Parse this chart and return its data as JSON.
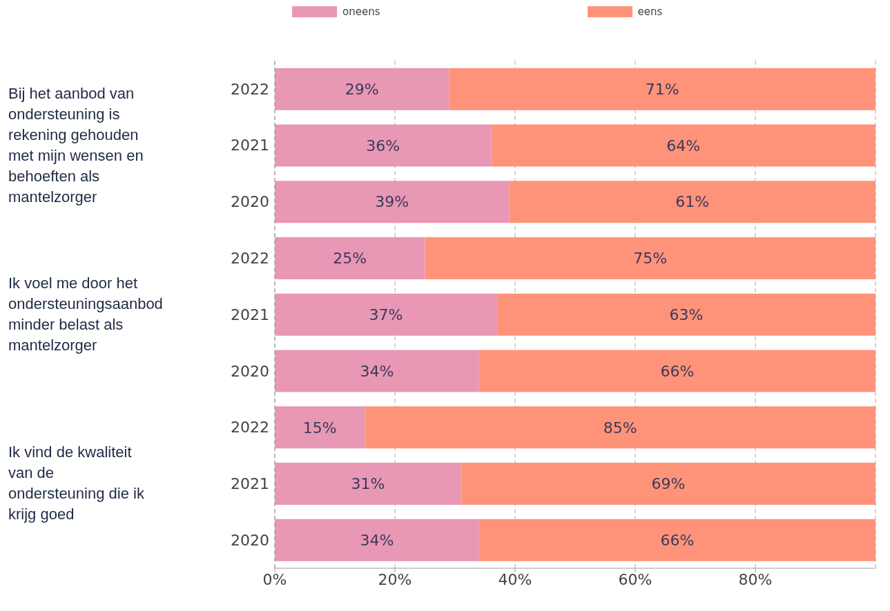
{
  "chart_data": {
    "type": "bar",
    "orientation": "horizontal",
    "stacked": true,
    "categories": [
      "2022",
      "2021",
      "2020",
      "2022",
      "2021",
      "2020",
      "2022",
      "2021",
      "2020"
    ],
    "series": [
      {
        "name": "oneens",
        "color": "#e897b4",
        "values": [
          29,
          36,
          39,
          25,
          37,
          34,
          15,
          31,
          34
        ],
        "value_labels": [
          "29%",
          "36%",
          "39%",
          "25%",
          "37%",
          "34%",
          "15%",
          "31%",
          "34%"
        ]
      },
      {
        "name": "eens",
        "color": "#ff937a",
        "values": [
          71,
          64,
          61,
          75,
          63,
          66,
          85,
          69,
          66
        ],
        "value_labels": [
          "71%",
          "64%",
          "61%",
          "75%",
          "63%",
          "66%",
          "85%",
          "69%",
          "66%"
        ]
      }
    ],
    "xlim": [
      0,
      100
    ],
    "xticks": [
      {
        "value": 0,
        "label": "0%"
      },
      {
        "value": 20,
        "label": "20%"
      },
      {
        "value": 40,
        "label": "40%"
      },
      {
        "value": 60,
        "label": "60%"
      },
      {
        "value": 80,
        "label": "80%"
      }
    ],
    "grid": "x",
    "legend": "top",
    "annotations": [
      "Bij het aanbod van ondersteuning is rekening gehouden met mijn wensen en behoeften als mantelzorger",
      "Ik voel me door het ondersteuningsaanbod minder belast als mantelzorger",
      "Ik vind de kwaliteit van de ondersteuning die ik krijg goed"
    ]
  }
}
